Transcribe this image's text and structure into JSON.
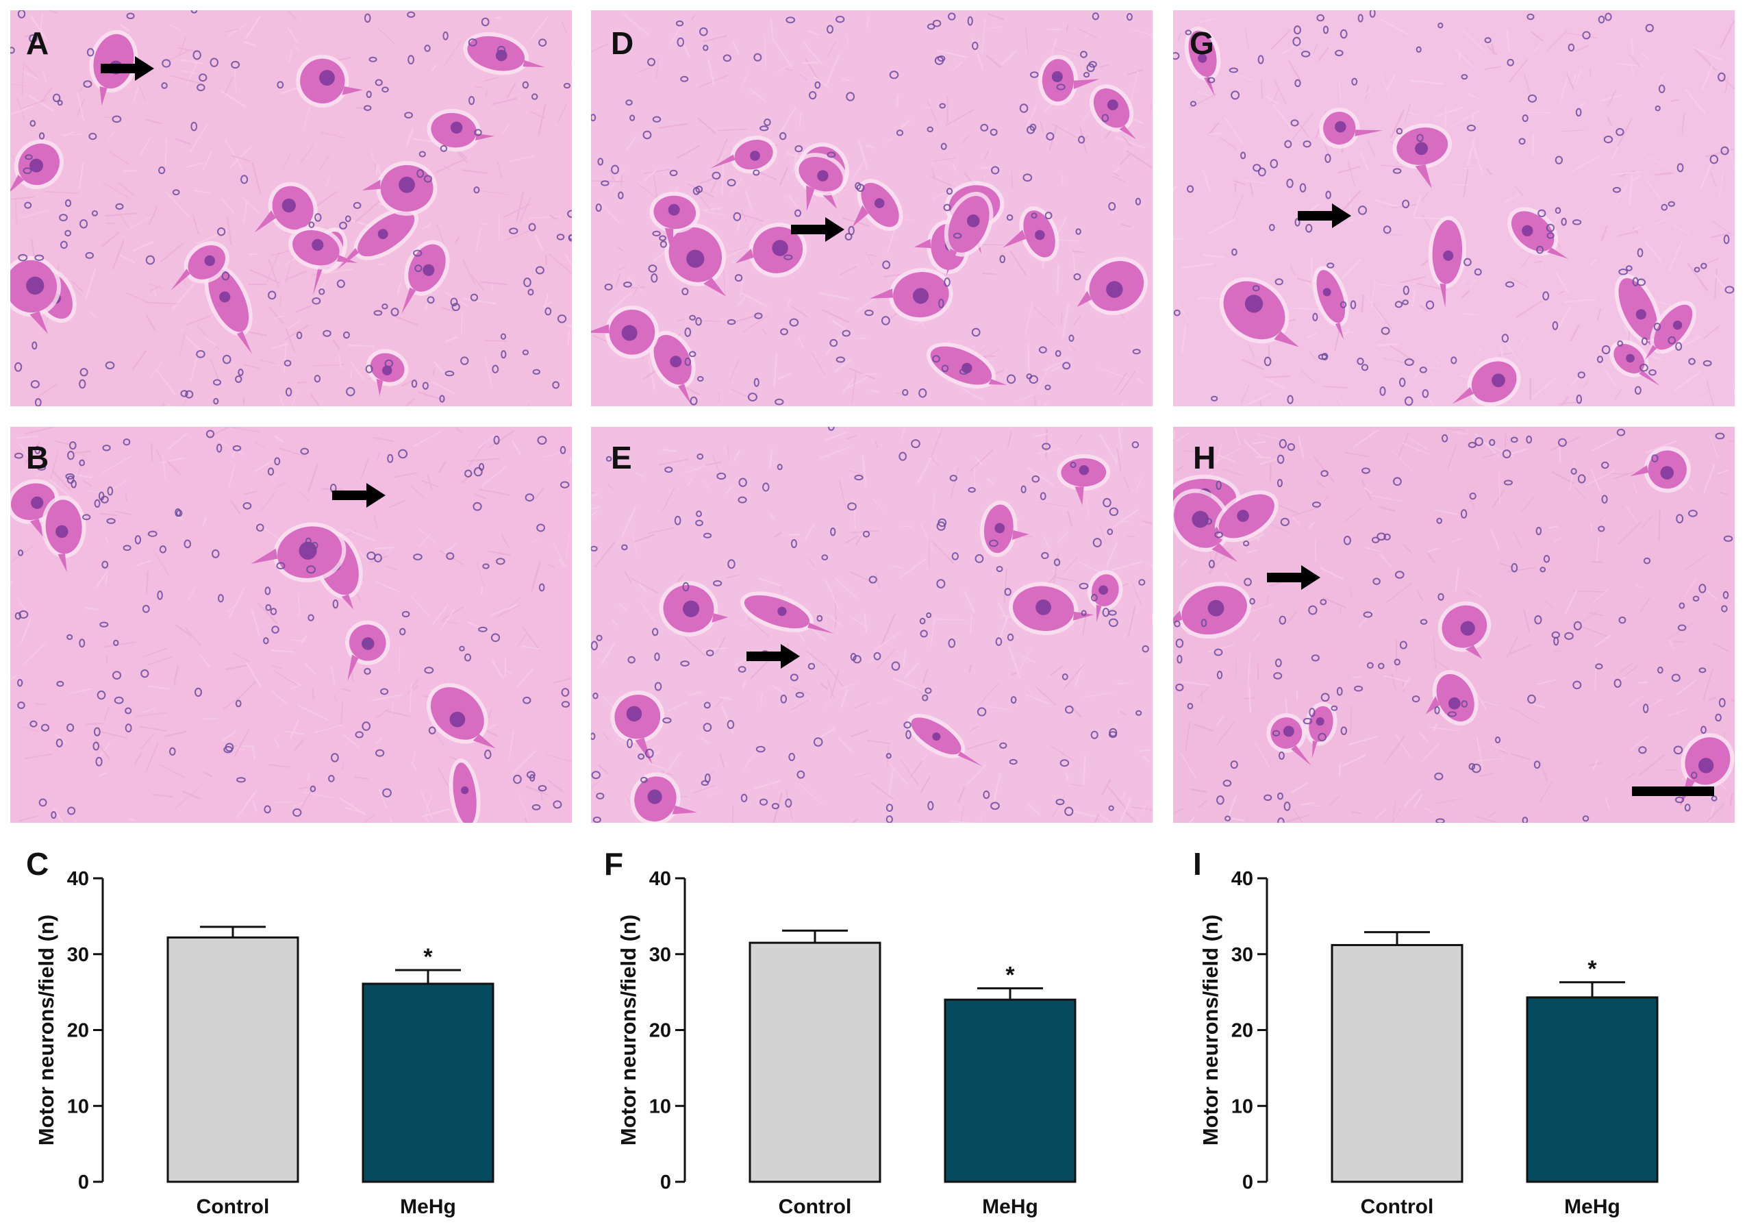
{
  "panels": [
    {
      "letter": "A"
    },
    {
      "letter": "B"
    },
    {
      "letter": "C"
    },
    {
      "letter": "D"
    },
    {
      "letter": "E"
    },
    {
      "letter": "F"
    },
    {
      "letter": "G"
    },
    {
      "letter": "H"
    },
    {
      "letter": "I"
    }
  ],
  "colors": {
    "tissue": "#f1b8dc",
    "neuron": "#d86cc0",
    "nucleus": "#8a3fa0",
    "glia": "#6a4a9c",
    "control_bar": "#d3d3d3",
    "mehg_bar": "#064a5e",
    "arrow": "#000000",
    "scale_bar": "#000000"
  },
  "icons": [
    "arrow-right-icon",
    "scale-bar"
  ],
  "chart_data": [
    {
      "type": "bar",
      "panel": "C",
      "categories": [
        "Control",
        "MeHg"
      ],
      "values": [
        32.2,
        26.1
      ],
      "errors": [
        1.4,
        1.8
      ],
      "significance": [
        "",
        "*"
      ],
      "ylabel": "Motor neurons/field (n)",
      "ylim": [
        0,
        40
      ],
      "yticks": [
        0,
        10,
        20,
        30,
        40
      ]
    },
    {
      "type": "bar",
      "panel": "F",
      "categories": [
        "Control",
        "MeHg"
      ],
      "values": [
        31.5,
        24.0
      ],
      "errors": [
        1.6,
        1.5
      ],
      "significance": [
        "",
        "*"
      ],
      "ylabel": "Motor neurons/field (n)",
      "ylim": [
        0,
        40
      ],
      "yticks": [
        0,
        10,
        20,
        30,
        40
      ]
    },
    {
      "type": "bar",
      "panel": "I",
      "categories": [
        "Control",
        "MeHg"
      ],
      "values": [
        31.2,
        24.3
      ],
      "errors": [
        1.7,
        2.0
      ],
      "significance": [
        "",
        "*"
      ],
      "ylabel": "Motor neurons/field (n)",
      "ylim": [
        0,
        40
      ],
      "yticks": [
        0,
        10,
        20,
        30,
        40
      ]
    }
  ]
}
